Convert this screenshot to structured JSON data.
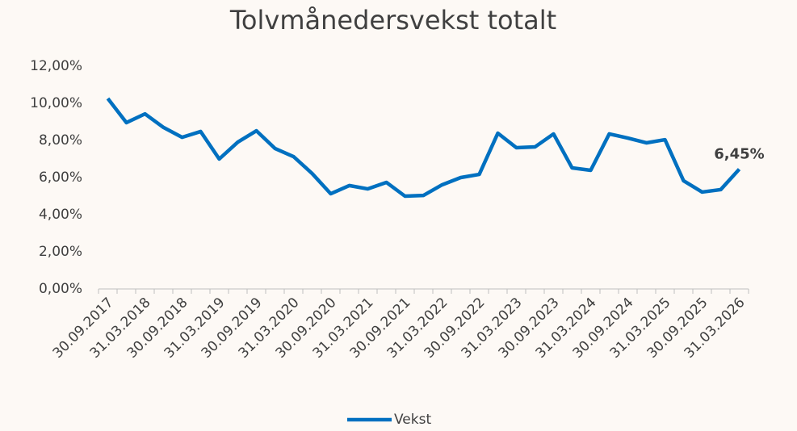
{
  "chart_data": {
    "type": "line",
    "title": "Tolvmånedersvekst totalt",
    "categories": [
      "30.09.2017",
      null,
      "31.03.2018",
      null,
      "30.09.2018",
      null,
      "31.03.2019",
      null,
      "30.09.2019",
      null,
      "31.03.2020",
      null,
      "30.09.2020",
      null,
      "31.03.2021",
      null,
      "30.09.2021",
      null,
      "31.03.2022",
      null,
      "30.09.2022",
      null,
      "31.03.2023",
      null,
      "30.09.2023",
      null,
      "31.03.2024",
      null,
      "30.09.2024",
      null,
      "31.03.2025",
      null,
      "30.09.2025",
      null,
      "31.03.2026"
    ],
    "series": [
      {
        "name": "Vekst",
        "color": "#0070c0",
        "values": [
          10.26,
          8.96,
          9.43,
          8.7,
          8.17,
          8.48,
          7.0,
          7.91,
          8.52,
          7.57,
          7.13,
          6.22,
          5.13,
          5.57,
          5.39,
          5.74,
          5.0,
          5.04,
          5.61,
          6.0,
          6.17,
          8.39,
          7.61,
          7.65,
          8.35,
          6.52,
          6.39,
          8.35,
          8.13,
          7.87,
          8.04,
          5.83,
          5.22,
          5.35,
          6.45
        ],
        "value_labels": [
          null,
          null,
          null,
          null,
          null,
          null,
          null,
          null,
          null,
          null,
          null,
          null,
          null,
          null,
          null,
          null,
          null,
          null,
          null,
          null,
          null,
          null,
          null,
          null,
          null,
          null,
          null,
          null,
          null,
          null,
          null,
          null,
          null,
          null,
          "6,45%"
        ]
      }
    ],
    "ylim": [
      0,
      12
    ],
    "yticks": [
      {
        "value": 0,
        "label": "0,00%"
      },
      {
        "value": 2,
        "label": "2,00%"
      },
      {
        "value": 4,
        "label": "4,00%"
      },
      {
        "value": 6,
        "label": "6,00%"
      },
      {
        "value": 8,
        "label": "8,00%"
      },
      {
        "value": 10,
        "label": "10,00%"
      },
      {
        "value": 12,
        "label": "12,00%"
      }
    ],
    "legend": "bottom"
  }
}
